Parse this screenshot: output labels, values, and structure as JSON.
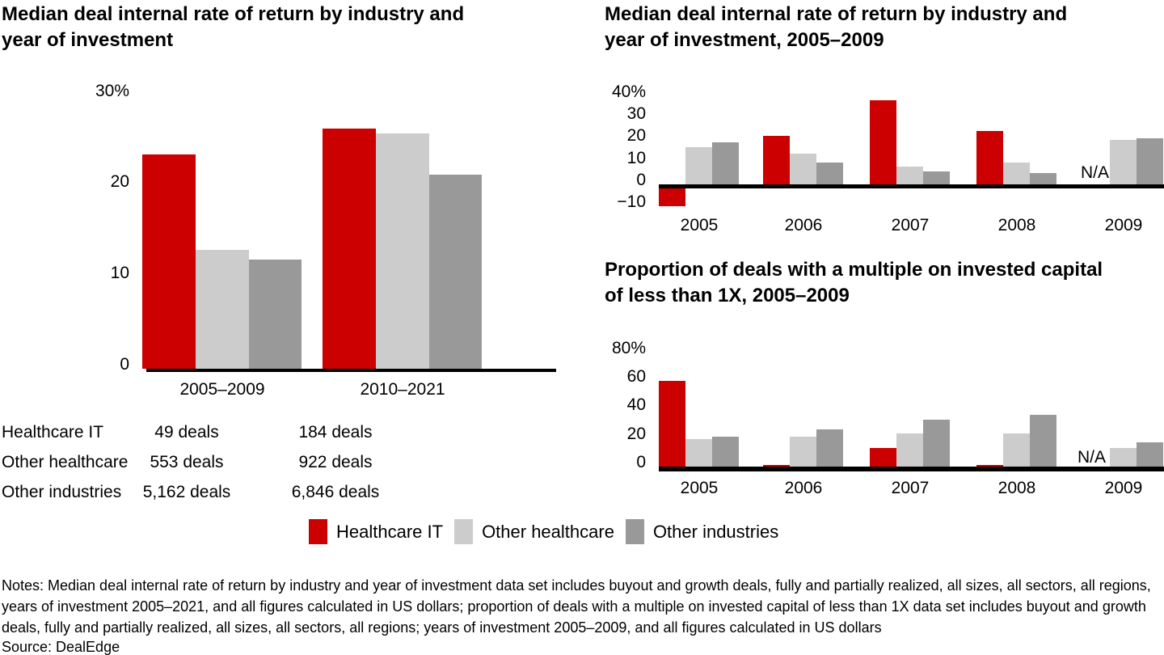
{
  "page": {
    "title_left": "Median deal internal rate of return by industry and year of investment",
    "title_top_right": "Median deal internal rate of return by industry and year of investment, 2005–2009",
    "title_bottom_right": "Proportion of deals with a multiple on invested capital of less than 1X, 2005–2009",
    "notes": "Notes: Median deal internal rate of return by industry and year of investment data set includes buyout and growth deals, fully and partially realized, all sizes, all sectors, all regions, years of investment 2005–2021, and all figures calculated in US dollars; proportion of deals with a multiple on invested capital of less than 1X data set includes buyout and growth deals, fully and partially realized, all sizes, all sectors, all regions; years of investment 2005–2009, and all figures calculated in US dollars",
    "source": "Source: DealEdge"
  },
  "colors": {
    "healthcare_it": "#CC0000",
    "other_healthcare": "#CCCCCC",
    "other_industries": "#999999",
    "axis": "#000000",
    "text": "#000000",
    "background": "#FFFFFF"
  },
  "legend": {
    "position": "bottom-center-shared",
    "items": [
      {
        "label": "Healthcare IT",
        "color_key": "healthcare_it"
      },
      {
        "label": "Other healthcare",
        "color_key": "other_healthcare"
      },
      {
        "label": "Other industries",
        "color_key": "other_industries"
      }
    ]
  },
  "deal_table": {
    "rows": [
      {
        "label": "Healthcare IT",
        "period_2005_2009": "49 deals",
        "period_2010_2021": "184 deals"
      },
      {
        "label": "Other healthcare",
        "period_2005_2009": "553 deals",
        "period_2010_2021": "922 deals"
      },
      {
        "label": "Other industries",
        "period_2005_2009": "5,162 deals",
        "period_2010_2021": "6,846 deals"
      }
    ]
  },
  "chart_data": [
    {
      "type": "bar",
      "title": "Median deal internal rate of return by industry and year of investment",
      "categories": [
        "2005–2009",
        "2010–2021"
      ],
      "series": [
        {
          "name": "Healthcare IT",
          "color_key": "healthcare_it",
          "values": [
            23.5,
            26.3
          ]
        },
        {
          "name": "Other healthcare",
          "color_key": "other_healthcare",
          "values": [
            13,
            25.8
          ]
        },
        {
          "name": "Other industries",
          "color_key": "other_industries",
          "values": [
            12,
            21.3
          ]
        }
      ],
      "xlabel": "",
      "ylabel": "",
      "ylim": [
        0,
        30
      ],
      "yticks": [
        {
          "value": 0,
          "label": "0"
        },
        {
          "value": 10,
          "label": "10"
        },
        {
          "value": 20,
          "label": "20"
        },
        {
          "value": 30,
          "label": "30%"
        }
      ],
      "grid": false,
      "legend_position": "shared-bottom"
    },
    {
      "type": "bar",
      "title": "Median deal internal rate of return by industry and year of investment, 2005–2009",
      "categories": [
        "2005",
        "2006",
        "2007",
        "2008",
        "2009"
      ],
      "series": [
        {
          "name": "Healthcare IT",
          "color_key": "healthcare_it",
          "values": [
            -10,
            22,
            38,
            24,
            null
          ]
        },
        {
          "name": "Other healthcare",
          "color_key": "other_healthcare",
          "values": [
            17,
            14,
            8,
            10,
            20
          ]
        },
        {
          "name": "Other industries",
          "color_key": "other_industries",
          "values": [
            19,
            10,
            6,
            5,
            21
          ]
        }
      ],
      "na_label": "N/A",
      "xlabel": "",
      "ylabel": "",
      "ylim": [
        -10,
        40
      ],
      "yticks": [
        {
          "value": -10,
          "label": "−10"
        },
        {
          "value": 0,
          "label": "0"
        },
        {
          "value": 10,
          "label": "10"
        },
        {
          "value": 20,
          "label": "20"
        },
        {
          "value": 30,
          "label": "30"
        },
        {
          "value": 40,
          "label": "40%"
        }
      ],
      "grid": false,
      "legend_position": "shared-bottom"
    },
    {
      "type": "bar",
      "title": "Proportion of deals with a multiple on invested capital of less than 1X, 2005–2009",
      "categories": [
        "2005",
        "2006",
        "2007",
        "2008",
        "2009"
      ],
      "series": [
        {
          "name": "Healthcare IT",
          "color_key": "healthcare_it",
          "values": [
            60,
            1,
            13,
            1,
            null
          ]
        },
        {
          "name": "Other healthcare",
          "color_key": "other_healthcare",
          "values": [
            19,
            21,
            23,
            23,
            13
          ]
        },
        {
          "name": "Other industries",
          "color_key": "other_industries",
          "values": [
            21,
            26,
            33,
            36,
            17
          ]
        }
      ],
      "na_label": "N/A",
      "xlabel": "",
      "ylabel": "",
      "ylim": [
        0,
        80
      ],
      "yticks": [
        {
          "value": 0,
          "label": "0"
        },
        {
          "value": 20,
          "label": "20"
        },
        {
          "value": 40,
          "label": "40"
        },
        {
          "value": 60,
          "label": "60"
        },
        {
          "value": 80,
          "label": "80%"
        }
      ],
      "grid": false,
      "legend_position": "shared-bottom"
    }
  ]
}
